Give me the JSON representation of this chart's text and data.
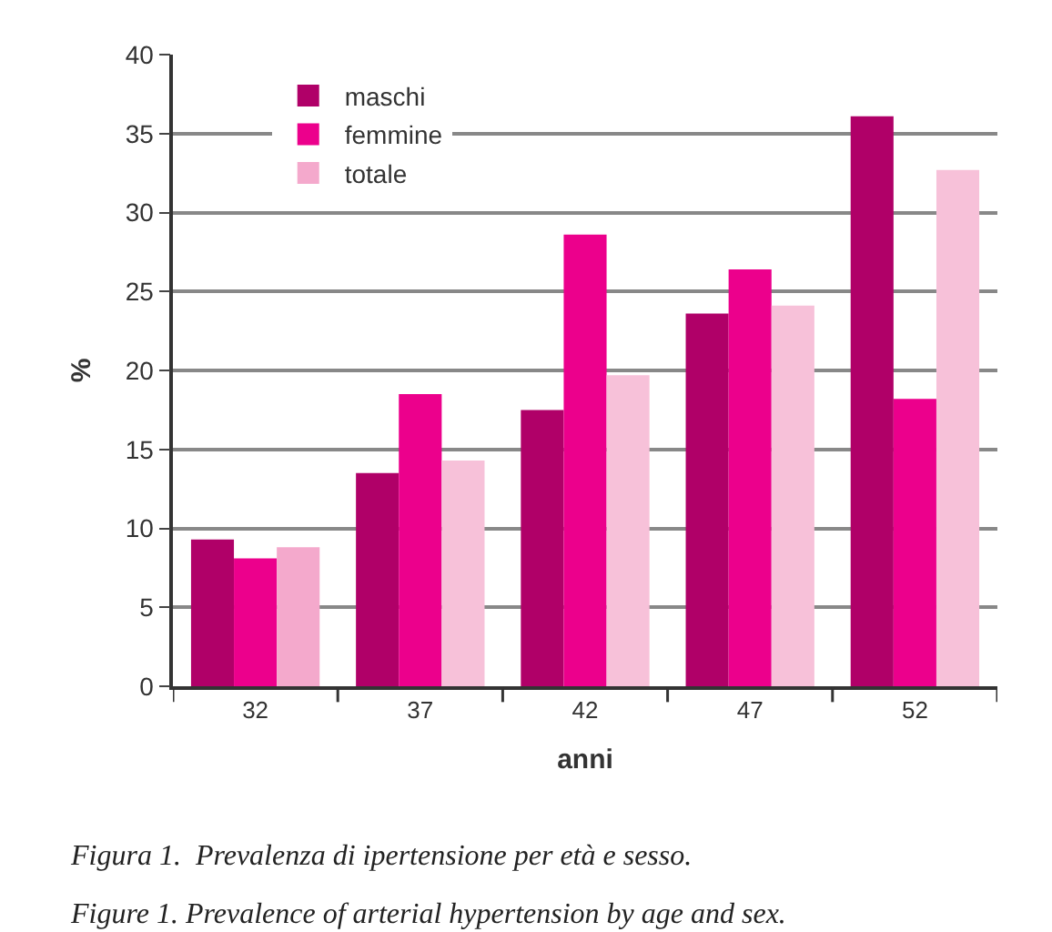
{
  "chart_data": {
    "type": "bar",
    "categories": [
      "32",
      "37",
      "42",
      "47",
      "52"
    ],
    "series": [
      {
        "name": "maschi",
        "color": "#b00068",
        "values": [
          9.3,
          13.5,
          17.5,
          23.6,
          36.1
        ]
      },
      {
        "name": "femmine",
        "color": "#ec008c",
        "values": [
          8.1,
          18.5,
          28.6,
          26.4,
          18.2
        ]
      },
      {
        "name": "totale",
        "color": "#f7c1d9",
        "colors": [
          "#f4a9cc",
          "#f7c1d9",
          "#f7c1d9",
          "#f7c1d9",
          "#f7c1d9"
        ],
        "values": [
          8.8,
          14.3,
          19.7,
          24.1,
          32.7
        ]
      }
    ],
    "xlabel": "anni",
    "ylabel": "%",
    "ylim": [
      0,
      40
    ],
    "yticks": [
      0,
      5,
      10,
      15,
      20,
      25,
      30,
      35,
      40
    ],
    "grid": "y",
    "legend": "top left",
    "annotations": [
      "Figura 1.  Prevalenza di ipertensione per età e sesso.",
      "Figure 1. Prevalence of arterial hypertension by age and sex."
    ]
  }
}
